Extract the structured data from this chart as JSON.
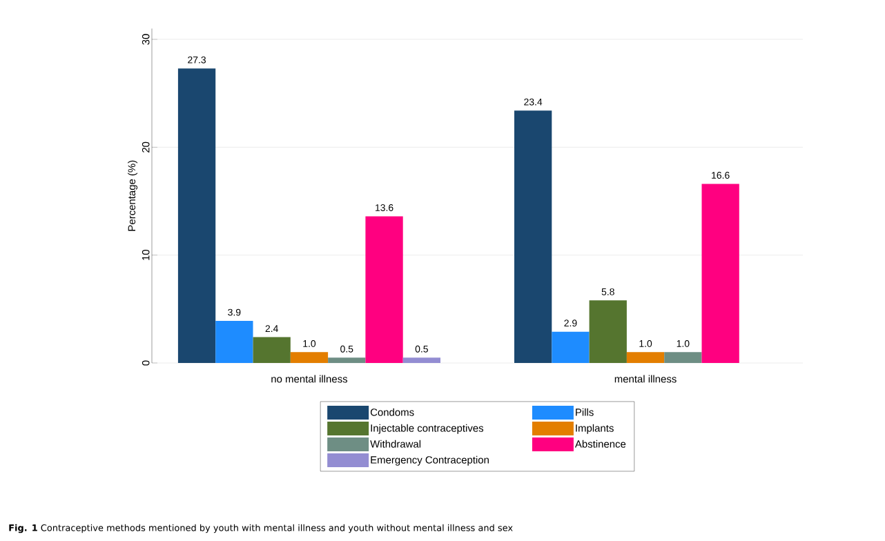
{
  "chart_data": {
    "type": "bar",
    "categories": [
      "no mental illness",
      "mental illness"
    ],
    "series": [
      {
        "name": "Condoms",
        "color": "#1a476f",
        "values": [
          27.3,
          23.4
        ],
        "value_labels": [
          "27.3",
          "23.4"
        ]
      },
      {
        "name": "Pills",
        "color": "#1e8cff",
        "values": [
          3.9,
          2.9
        ],
        "value_labels": [
          "3.9",
          "2.9"
        ]
      },
      {
        "name": "Injectable contraceptives",
        "color": "#55752f",
        "values": [
          2.4,
          5.8
        ],
        "value_labels": [
          "2.4",
          "5.8"
        ]
      },
      {
        "name": "Implants",
        "color": "#e37e00",
        "values": [
          1.0,
          1.0
        ],
        "value_labels": [
          "1.0",
          "1.0"
        ]
      },
      {
        "name": "Withdrawal",
        "color": "#6e8e84",
        "values": [
          0.5,
          1.0
        ],
        "value_labels": [
          "0.5",
          "1.0"
        ]
      },
      {
        "name": "Abstinence",
        "color": "#ff0080",
        "values": [
          13.6,
          16.6
        ],
        "value_labels": [
          "13.6",
          "16.6"
        ]
      },
      {
        "name": "Emergency Contraception",
        "color": "#938dd2",
        "values": [
          0.5,
          null
        ],
        "value_labels": [
          "0.5",
          null
        ]
      }
    ],
    "ylabel": "Percentage (%)",
    "ylim": [
      0,
      31
    ],
    "yticks": [
      0,
      10,
      20,
      30
    ],
    "grid": "y",
    "legend": "bottom",
    "annotations": [
      "**Fig. 1** Contraceptive methods mentioned by youth with mental illness and youth without mental illness and sex"
    ]
  }
}
